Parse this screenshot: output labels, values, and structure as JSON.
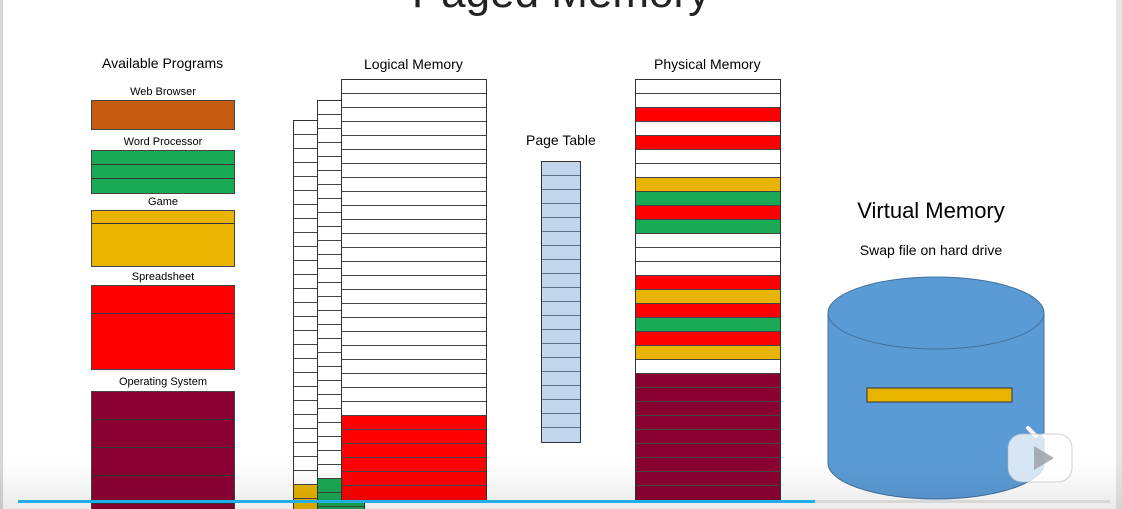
{
  "title": "Paged Memory",
  "labels": {
    "available_programs": "Available Programs",
    "logical_memory": "Logical Memory",
    "page_table": "Page Table",
    "physical_memory": "Physical Memory",
    "virtual_memory": "Virtual Memory",
    "swap_file": "Swap file on hard drive"
  },
  "programs": [
    {
      "name": "Web Browser",
      "color": "#c55a11",
      "pages": 1
    },
    {
      "name": "Word Processor",
      "color": "#1aaa55",
      "pages": 3
    },
    {
      "name": "Game",
      "color": "#e8b400",
      "pages": 2
    },
    {
      "name": "Spreadsheet",
      "color": "#ff0000",
      "pages": 2
    },
    {
      "name": "Operating System",
      "color": "#8b0033",
      "pages": 5
    }
  ],
  "colors": {
    "red": "#ff0000",
    "green": "#1aaa55",
    "yellow": "#e8b400",
    "os": "#8b0033",
    "page_table": "#c3d5ec",
    "disk": "#5b9bd5",
    "empty": "#ffffff"
  },
  "logical_memory": {
    "front": {
      "empty_pages": 24,
      "filled": [
        "red",
        "red",
        "red",
        "red",
        "red",
        "red"
      ]
    },
    "middle": {
      "empty_pages": 27,
      "filled": [
        "green",
        "green",
        "green"
      ]
    },
    "back": {
      "empty_pages": 26,
      "filled": [
        "yellow",
        "yellow"
      ]
    }
  },
  "page_table": {
    "entries": 20
  },
  "physical_memory": {
    "frames": [
      "empty",
      "empty",
      "red",
      "empty",
      "red",
      "empty",
      "empty",
      "yellow",
      "green",
      "red",
      "green",
      "empty",
      "empty",
      "empty",
      "red",
      "yellow",
      "red",
      "green",
      "red",
      "yellow",
      "empty",
      "os",
      "os",
      "os",
      "os",
      "os",
      "os",
      "os",
      "os",
      "os"
    ]
  },
  "swap_file": {
    "pages": [
      "yellow"
    ]
  },
  "video": {
    "progress": 0.73
  }
}
